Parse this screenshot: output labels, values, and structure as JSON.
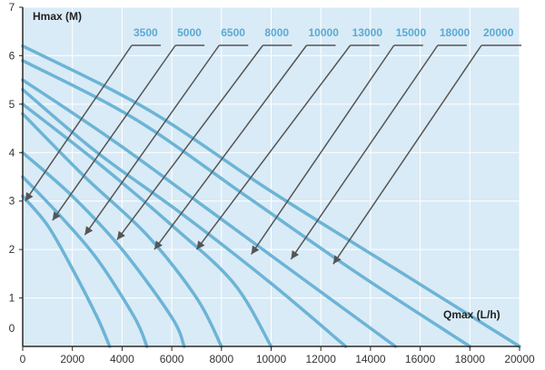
{
  "colors": {
    "plot_background": "#d9ebf6",
    "grid": "#ffffff",
    "curve": "#6cb4d6",
    "axis": "#2a2a2a",
    "pointer": "#555555",
    "series_label": "#5aaad4"
  },
  "chart_data": {
    "type": "line",
    "title": "",
    "xlabel": "Qmax (L/h)",
    "ylabel": "Hmax (M)",
    "xlim": [
      0,
      20000
    ],
    "ylim": [
      0,
      7
    ],
    "x_ticks": [
      "0",
      "2000",
      "4000",
      "6000",
      "8000",
      "10000",
      "12000",
      "14000",
      "16000",
      "18000",
      "20000"
    ],
    "y_ticks": [
      "0",
      "1",
      "2",
      "3",
      "4",
      "5",
      "6",
      "7"
    ],
    "grid": true,
    "legend": "callout labels along top with arrows pointing to each curve",
    "series": [
      {
        "name": "3500",
        "x": [
          0,
          1000,
          2000,
          3000,
          3500
        ],
        "y": [
          3.1,
          2.5,
          1.6,
          0.6,
          0
        ],
        "pointer": {
          "x": 100,
          "y": 3.0
        }
      },
      {
        "name": "5000",
        "x": [
          0,
          1500,
          3000,
          4500,
          5000
        ],
        "y": [
          3.5,
          2.7,
          1.8,
          0.6,
          0
        ],
        "pointer": {
          "x": 1200,
          "y": 2.6
        }
      },
      {
        "name": "6500",
        "x": [
          0,
          2000,
          4000,
          6000,
          6500
        ],
        "y": [
          4.0,
          3.1,
          2.0,
          0.6,
          0
        ],
        "pointer": {
          "x": 2500,
          "y": 2.3
        }
      },
      {
        "name": "8000",
        "x": [
          0,
          2500,
          5000,
          7000,
          8000
        ],
        "y": [
          4.8,
          3.5,
          2.3,
          1.0,
          0
        ],
        "pointer": {
          "x": 3800,
          "y": 2.2
        }
      },
      {
        "name": "10000",
        "x": [
          0,
          3000,
          6000,
          8500,
          10000
        ],
        "y": [
          5.0,
          3.8,
          2.5,
          1.3,
          0
        ],
        "pointer": {
          "x": 5300,
          "y": 2.0
        }
      },
      {
        "name": "13000",
        "x": [
          0,
          3000,
          6500,
          10000,
          13000
        ],
        "y": [
          5.3,
          4.0,
          2.7,
          1.3,
          0
        ],
        "pointer": {
          "x": 7000,
          "y": 2.0
        }
      },
      {
        "name": "15000",
        "x": [
          0,
          3500,
          7000,
          11000,
          15000
        ],
        "y": [
          5.5,
          4.3,
          3.0,
          1.5,
          0
        ],
        "pointer": {
          "x": 9200,
          "y": 1.9
        }
      },
      {
        "name": "18000",
        "x": [
          0,
          4500,
          9000,
          13500,
          18000
        ],
        "y": [
          5.9,
          4.7,
          3.1,
          1.5,
          0
        ],
        "pointer": {
          "x": 10800,
          "y": 1.8
        }
      },
      {
        "name": "20000",
        "x": [
          0,
          5000,
          10000,
          15000,
          20000
        ],
        "y": [
          6.2,
          4.9,
          3.2,
          1.6,
          0
        ],
        "pointer": {
          "x": 12500,
          "y": 1.7
        }
      }
    ]
  }
}
